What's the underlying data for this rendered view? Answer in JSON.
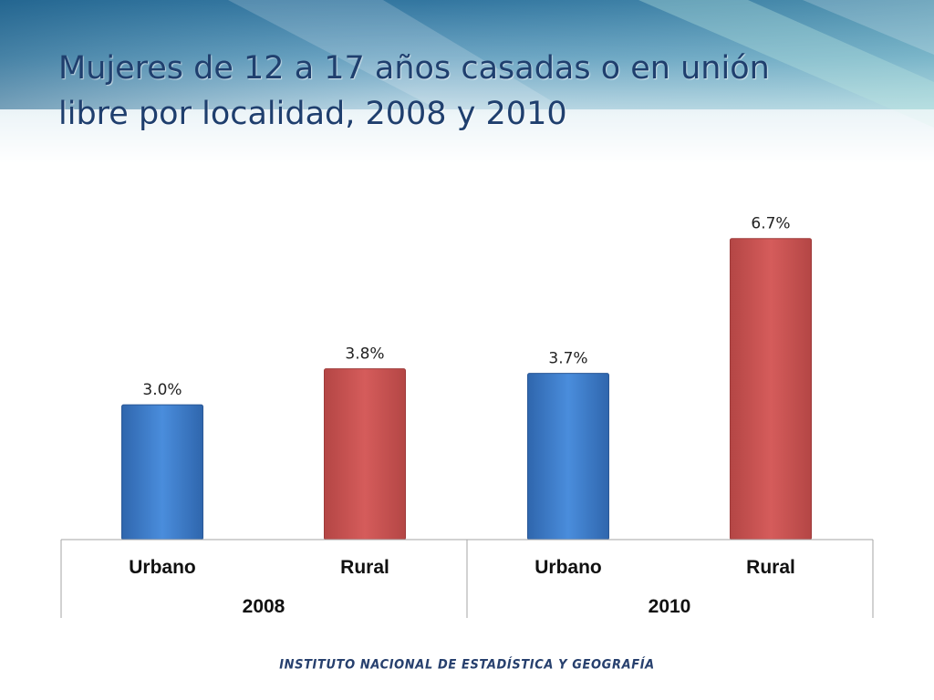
{
  "slide": {
    "title_lines": [
      "Mujeres de 12 a 17 años casadas o en unión",
      "libre por localidad, 2008 y 2010"
    ],
    "footer": "INSTITUTO NACIONAL  DE ESTADÍSTICA Y GEOGRAFÍA"
  },
  "colors": {
    "urbano": "#3f7fd0",
    "rural": "#cf5756",
    "title": "#1f3f6e"
  },
  "chart_data": {
    "type": "bar",
    "title": "Mujeres de 12 a 17 años casadas o en unión libre por localidad, 2008 y 2010",
    "categories": [
      "Urbano",
      "Rural",
      "Urbano",
      "Rural"
    ],
    "groups": [
      {
        "label": "2008",
        "categories": [
          "Urbano",
          "Rural"
        ]
      },
      {
        "label": "2010",
        "categories": [
          "Urbano",
          "Rural"
        ]
      }
    ],
    "values": [
      3.0,
      3.8,
      3.7,
      6.7
    ],
    "value_labels": [
      "3.0%",
      "3.8%",
      "3.7%",
      "6.7%"
    ],
    "unit": "%",
    "ylim": [
      0,
      7
    ],
    "grid": false,
    "legend": "none"
  }
}
